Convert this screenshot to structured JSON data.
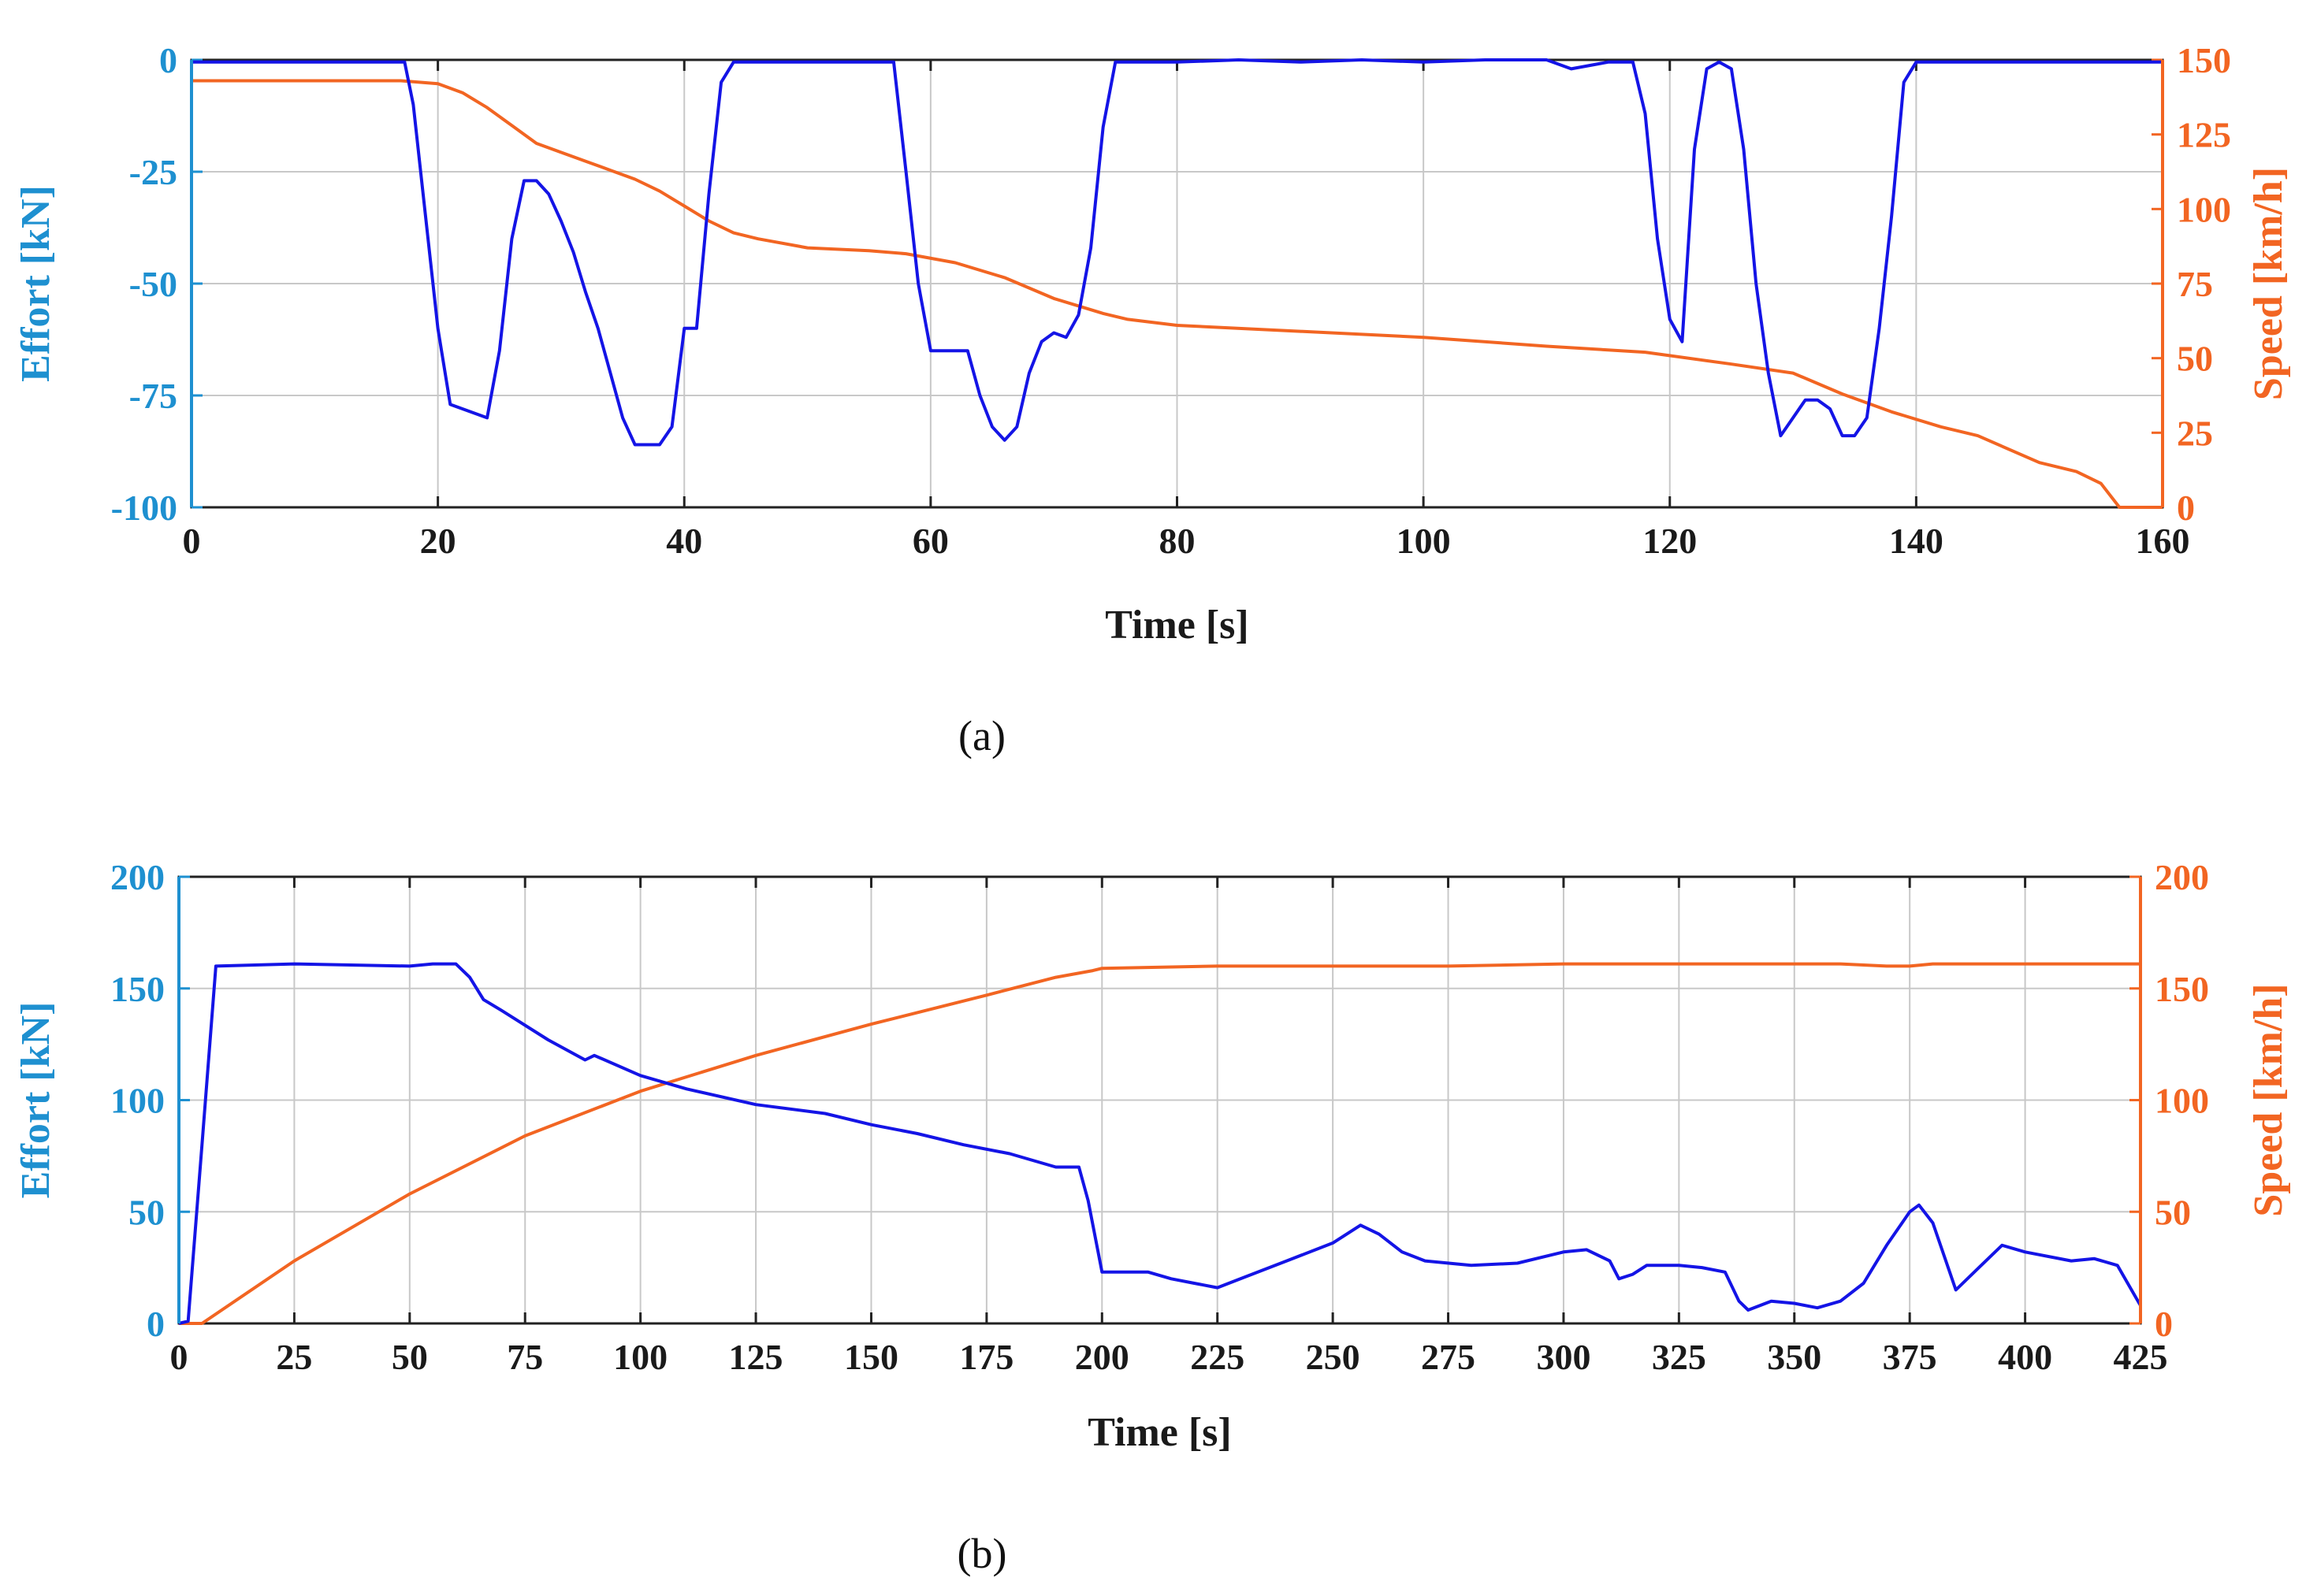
{
  "chart_data": [
    {
      "type": "line",
      "caption": "(a)",
      "xlabel": "Time [s]",
      "ylabel_left": "Effort [kN]",
      "ylabel_right": "Speed [km/h]",
      "xlim": [
        0,
        160
      ],
      "ylim_left": [
        -100,
        0
      ],
      "ylim_right": [
        0,
        150
      ],
      "xticks": [
        0,
        20,
        40,
        60,
        80,
        100,
        120,
        140,
        160
      ],
      "yticks_left": [
        0,
        -25,
        -50,
        -75,
        -100
      ],
      "yticks_right": [
        150,
        125,
        100,
        75,
        50,
        25,
        0
      ],
      "grid": true,
      "colors": {
        "effort": "#1414e6",
        "speed": "#f26522",
        "left_axis": "#1e90d0",
        "right_axis": "#f26522"
      },
      "series": [
        {
          "name": "Effort",
          "axis": "left",
          "x": [
            0,
            5,
            10,
            15,
            17.3,
            18,
            19,
            20,
            21,
            24,
            25,
            26,
            27,
            28,
            29,
            30,
            31,
            32,
            33,
            34,
            35,
            36,
            37,
            38,
            39,
            40,
            41,
            42,
            43,
            44,
            45,
            50,
            55,
            57,
            58,
            59,
            60,
            61,
            62,
            63,
            64,
            65,
            66,
            67,
            68,
            69,
            70,
            71,
            72,
            73,
            74,
            75,
            80,
            85,
            90,
            95,
            100,
            105,
            110,
            112,
            115,
            117,
            118,
            119,
            120,
            121,
            122,
            123,
            124,
            125,
            126,
            127,
            128,
            129,
            130,
            131,
            132,
            133,
            134,
            135,
            136,
            137,
            138,
            139,
            140,
            145,
            150,
            155,
            160
          ],
          "values": [
            -0.5,
            -0.5,
            -0.5,
            -0.5,
            -0.5,
            -10,
            -35,
            -60,
            -77,
            -80,
            -65,
            -40,
            -27,
            -27,
            -30,
            -36,
            -43,
            -52,
            -60,
            -70,
            -80,
            -86,
            -86,
            -86,
            -82,
            -60,
            -60,
            -30,
            -5,
            -0.5,
            -0.5,
            -0.5,
            -0.5,
            -0.5,
            -25,
            -50,
            -65,
            -65,
            -65,
            -65,
            -75,
            -82,
            -85,
            -82,
            -70,
            -63,
            -61,
            -62,
            -57,
            -42,
            -15,
            -0.5,
            -0.5,
            0,
            -0.5,
            0,
            -0.5,
            0,
            0,
            -2,
            -0.5,
            -0.5,
            -12,
            -40,
            -58,
            -63,
            -20,
            -2,
            -0.5,
            -2,
            -20,
            -50,
            -70,
            -84,
            -80,
            -76,
            -76,
            -78,
            -84,
            -84,
            -80,
            -60,
            -35,
            -5,
            -0.5,
            -0.5,
            -0.5,
            -0.5,
            -0.5
          ]
        },
        {
          "name": "Speed",
          "axis": "right",
          "x": [
            0,
            10,
            17,
            20,
            22,
            24,
            26,
            28,
            30,
            32,
            34,
            36,
            38,
            40,
            42,
            44,
            46,
            50,
            55,
            58,
            62,
            66,
            70,
            74,
            76,
            80,
            90,
            100,
            110,
            118,
            125,
            130,
            134,
            138,
            142,
            145,
            150,
            153,
            155,
            156.5,
            160
          ],
          "values": [
            143,
            143,
            143,
            142,
            139,
            134,
            128,
            122,
            119,
            116,
            113,
            110,
            106,
            101,
            96,
            92,
            90,
            87,
            86,
            85,
            82,
            77,
            70,
            65,
            63,
            61,
            59,
            57,
            54,
            52,
            48,
            45,
            38,
            32,
            27,
            24,
            15,
            12,
            8,
            0,
            0
          ]
        }
      ]
    },
    {
      "type": "line",
      "caption": "(b)",
      "xlabel": "Time [s]",
      "ylabel_left": "Effort [kN]",
      "ylabel_right": "Speed [km/h]",
      "xlim": [
        0,
        425
      ],
      "ylim_left": [
        0,
        200
      ],
      "ylim_right": [
        0,
        200
      ],
      "xticks": [
        0,
        25,
        50,
        75,
        100,
        125,
        150,
        175,
        200,
        225,
        250,
        275,
        300,
        325,
        350,
        375,
        400,
        425
      ],
      "yticks_left": [
        200,
        150,
        100,
        50,
        0
      ],
      "yticks_right": [
        200,
        150,
        100,
        50,
        0
      ],
      "grid": true,
      "colors": {
        "effort": "#1414e6",
        "speed": "#f26522",
        "left_axis": "#1e90d0",
        "right_axis": "#f26522"
      },
      "series": [
        {
          "name": "Effort",
          "axis": "left",
          "x": [
            0,
            2,
            5,
            8,
            25,
            50,
            55,
            60,
            63,
            66,
            70,
            80,
            88,
            90,
            100,
            110,
            125,
            140,
            150,
            160,
            170,
            180,
            190,
            195,
            197,
            200,
            210,
            215,
            220,
            225,
            230,
            240,
            250,
            256,
            260,
            265,
            270,
            280,
            290,
            300,
            305,
            310,
            312,
            315,
            318,
            325,
            330,
            335,
            338,
            340,
            345,
            350,
            355,
            360,
            365,
            370,
            375,
            377,
            380,
            385,
            390,
            395,
            400,
            410,
            415,
            420,
            425
          ],
          "values": [
            0,
            1,
            80,
            160,
            161,
            160,
            161,
            161,
            155,
            145,
            140,
            127,
            118,
            120,
            111,
            105,
            98,
            94,
            89,
            85,
            80,
            76,
            70,
            70,
            55,
            23,
            23,
            20,
            18,
            16,
            20,
            28,
            36,
            44,
            40,
            32,
            28,
            26,
            27,
            32,
            33,
            28,
            20,
            22,
            26,
            26,
            25,
            23,
            10,
            6,
            10,
            9,
            7,
            10,
            18,
            35,
            50,
            53,
            45,
            15,
            25,
            35,
            32,
            28,
            29,
            26,
            8
          ]
        },
        {
          "name": "Speed",
          "axis": "right",
          "x": [
            0,
            5,
            25,
            50,
            75,
            100,
            125,
            150,
            175,
            190,
            198,
            200,
            225,
            250,
            275,
            300,
            325,
            350,
            360,
            370,
            375,
            380,
            400,
            425
          ],
          "values": [
            0,
            0,
            28,
            58,
            84,
            104,
            120,
            134,
            147,
            155,
            158,
            159,
            160,
            160,
            160,
            161,
            161,
            161,
            161,
            160,
            160,
            161,
            161,
            161
          ]
        }
      ]
    }
  ]
}
